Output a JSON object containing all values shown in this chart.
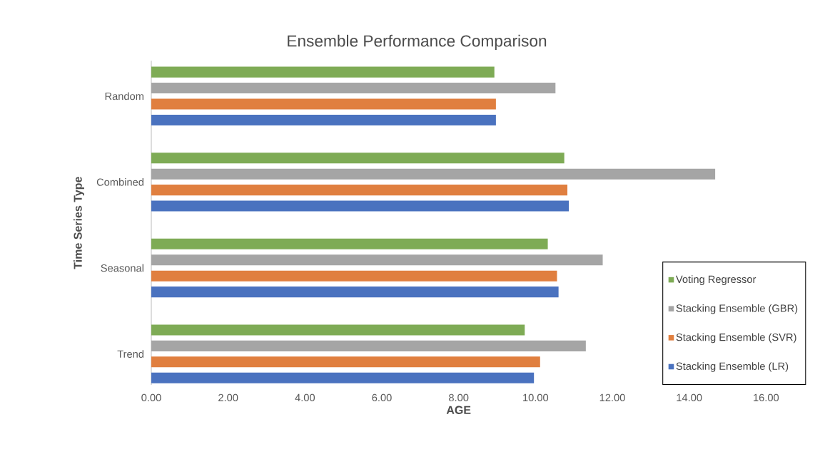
{
  "chart_data": {
    "type": "bar",
    "orientation": "horizontal",
    "title": "Ensemble Performance Comparison",
    "xlabel": "AGE",
    "ylabel": "Time Series Type",
    "categories": [
      "Random",
      "Combined",
      "Seasonal",
      "Trend"
    ],
    "series": [
      {
        "name": "Stacking Ensemble (LR)",
        "color": "#4a72bf",
        "values": [
          8.97,
          10.87,
          10.6,
          9.96
        ]
      },
      {
        "name": "Stacking Ensemble (SVR)",
        "color": "#e07f3f",
        "values": [
          8.97,
          10.83,
          10.56,
          10.12
        ]
      },
      {
        "name": "Stacking Ensemble (GBR)",
        "color": "#a5a5a5",
        "values": [
          10.52,
          14.68,
          11.75,
          11.31
        ]
      },
      {
        "name": "Voting Regressor",
        "color": "#7eab55",
        "values": [
          8.93,
          10.75,
          10.32,
          9.72
        ]
      }
    ],
    "xlim": [
      0,
      16
    ],
    "xticks": [
      {
        "value": 0,
        "label": "0.00"
      },
      {
        "value": 2,
        "label": "2.00"
      },
      {
        "value": 4,
        "label": "4.00"
      },
      {
        "value": 6,
        "label": "6.00"
      },
      {
        "value": 8,
        "label": "8.00"
      },
      {
        "value": 10,
        "label": "10.00"
      },
      {
        "value": 12,
        "label": "12.00"
      },
      {
        "value": 14,
        "label": "14.00"
      },
      {
        "value": 16,
        "label": "16.00"
      }
    ],
    "grid": false,
    "legend": "bottom right"
  }
}
